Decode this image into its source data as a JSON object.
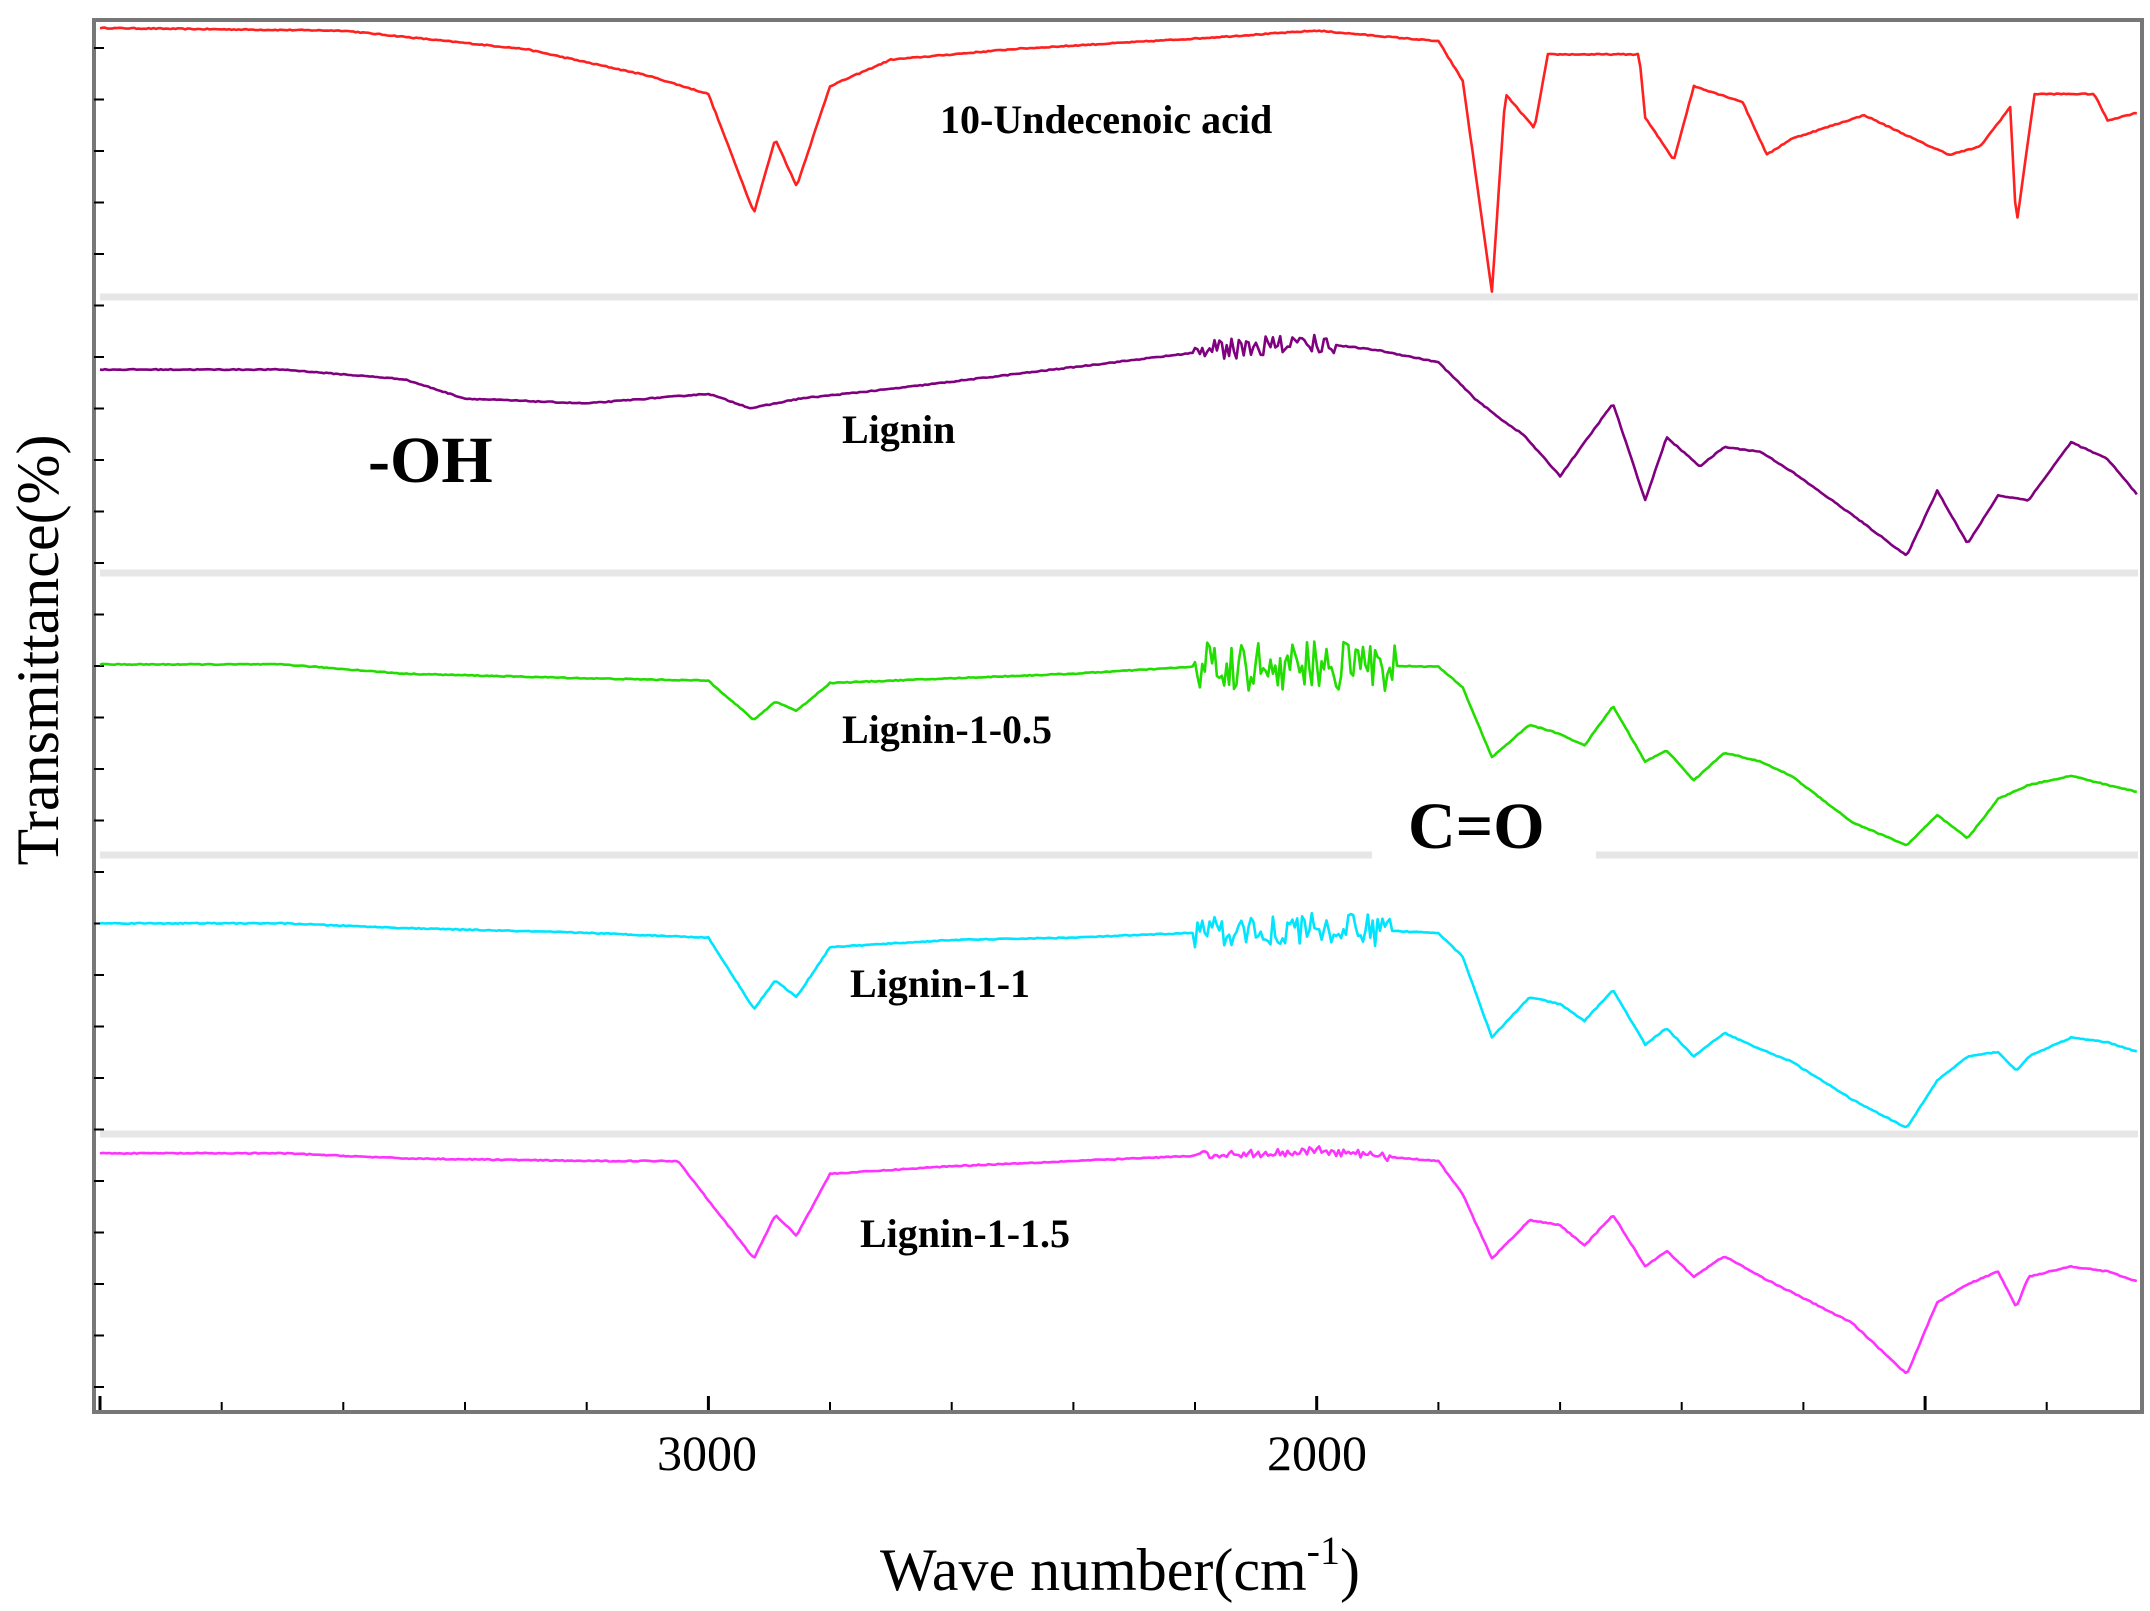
{
  "chart_data": {
    "type": "line",
    "title": "",
    "xlabel": "Wave number(cm",
    "xlabel_superscript": "-1",
    "xlabel_suffix": ")",
    "ylabel": "Transmittance(%)",
    "xlim": [
      4000,
      650
    ],
    "xaxis_reversed": true,
    "x_ticks": [
      3000,
      2000
    ],
    "x_tick_labels": [
      "3000",
      "2000"
    ],
    "grid": false,
    "annotations": [
      {
        "name": "oh-annotation",
        "text": "-OH",
        "x": 3450,
        "series": "Lignin"
      },
      {
        "name": "carbonyl-annotation",
        "text": "C=O",
        "x": 1710,
        "series": "Lignin-1-0.5"
      }
    ],
    "series": [
      {
        "name": "10-Undecenoic acid",
        "color": "#ff2020",
        "points": [
          [
            4000,
            1.0
          ],
          [
            3600,
            0.99
          ],
          [
            3300,
            0.92
          ],
          [
            3100,
            0.82
          ],
          [
            3000,
            0.75
          ],
          [
            2925,
            0.3
          ],
          [
            2890,
            0.58
          ],
          [
            2855,
            0.4
          ],
          [
            2800,
            0.78
          ],
          [
            2700,
            0.88
          ],
          [
            2500,
            0.92
          ],
          [
            2200,
            0.96
          ],
          [
            2000,
            0.99
          ],
          [
            1800,
            0.95
          ],
          [
            1760,
            0.8
          ],
          [
            1712,
            0.0
          ],
          [
            1690,
            0.75
          ],
          [
            1642,
            0.62
          ],
          [
            1620,
            0.9
          ],
          [
            1470,
            0.9
          ],
          [
            1460,
            0.66
          ],
          [
            1413,
            0.5
          ],
          [
            1380,
            0.78
          ],
          [
            1300,
            0.72
          ],
          [
            1260,
            0.52
          ],
          [
            1220,
            0.58
          ],
          [
            1100,
            0.67
          ],
          [
            1000,
            0.56
          ],
          [
            960,
            0.52
          ],
          [
            910,
            0.55
          ],
          [
            860,
            0.7
          ],
          [
            850,
            0.25
          ],
          [
            820,
            0.75
          ],
          [
            722,
            0.75
          ],
          [
            700,
            0.65
          ],
          [
            650,
            0.68
          ]
        ],
        "noise": []
      },
      {
        "name": "Lignin",
        "color": "#800080",
        "points": [
          [
            4000,
            0.82
          ],
          [
            3700,
            0.82
          ],
          [
            3500,
            0.78
          ],
          [
            3400,
            0.7
          ],
          [
            3200,
            0.68
          ],
          [
            3000,
            0.72
          ],
          [
            2930,
            0.66
          ],
          [
            2850,
            0.7
          ],
          [
            2700,
            0.74
          ],
          [
            2500,
            0.8
          ],
          [
            2300,
            0.86
          ],
          [
            2100,
            0.92
          ],
          [
            2000,
            0.93
          ],
          [
            1900,
            0.9
          ],
          [
            1800,
            0.85
          ],
          [
            1740,
            0.7
          ],
          [
            1700,
            0.62
          ],
          [
            1660,
            0.55
          ],
          [
            1600,
            0.38
          ],
          [
            1513,
            0.68
          ],
          [
            1460,
            0.28
          ],
          [
            1425,
            0.54
          ],
          [
            1370,
            0.42
          ],
          [
            1330,
            0.5
          ],
          [
            1270,
            0.48
          ],
          [
            1220,
            0.4
          ],
          [
            1120,
            0.22
          ],
          [
            1030,
            0.05
          ],
          [
            980,
            0.32
          ],
          [
            930,
            0.1
          ],
          [
            880,
            0.3
          ],
          [
            830,
            0.28
          ],
          [
            760,
            0.52
          ],
          [
            700,
            0.45
          ],
          [
            650,
            0.3
          ]
        ],
        "noise": [
          [
            2200,
            1970,
            0.04
          ]
        ]
      },
      {
        "name": "Lignin-1-0.5",
        "color": "#22dd00",
        "points": [
          [
            4000,
            0.8
          ],
          [
            3700,
            0.8
          ],
          [
            3500,
            0.76
          ],
          [
            3200,
            0.74
          ],
          [
            3000,
            0.73
          ],
          [
            2925,
            0.56
          ],
          [
            2890,
            0.64
          ],
          [
            2855,
            0.6
          ],
          [
            2800,
            0.72
          ],
          [
            2600,
            0.74
          ],
          [
            2400,
            0.76
          ],
          [
            2200,
            0.79
          ],
          [
            2000,
            0.8
          ],
          [
            1800,
            0.79
          ],
          [
            1760,
            0.7
          ],
          [
            1712,
            0.4
          ],
          [
            1650,
            0.54
          ],
          [
            1600,
            0.5
          ],
          [
            1560,
            0.45
          ],
          [
            1513,
            0.62
          ],
          [
            1460,
            0.38
          ],
          [
            1425,
            0.43
          ],
          [
            1380,
            0.3
          ],
          [
            1330,
            0.42
          ],
          [
            1270,
            0.38
          ],
          [
            1220,
            0.32
          ],
          [
            1120,
            0.12
          ],
          [
            1030,
            0.02
          ],
          [
            980,
            0.15
          ],
          [
            930,
            0.05
          ],
          [
            880,
            0.22
          ],
          [
            830,
            0.28
          ],
          [
            760,
            0.32
          ],
          [
            700,
            0.28
          ],
          [
            650,
            0.25
          ]
        ],
        "noise": [
          [
            2200,
            1870,
            0.1
          ]
        ]
      },
      {
        "name": "Lignin-1-1",
        "color": "#00e5ff",
        "points": [
          [
            4000,
            0.86
          ],
          [
            3700,
            0.86
          ],
          [
            3500,
            0.84
          ],
          [
            3200,
            0.82
          ],
          [
            3000,
            0.8
          ],
          [
            2925,
            0.5
          ],
          [
            2890,
            0.62
          ],
          [
            2855,
            0.55
          ],
          [
            2800,
            0.76
          ],
          [
            2600,
            0.79
          ],
          [
            2400,
            0.8
          ],
          [
            2200,
            0.82
          ],
          [
            2000,
            0.84
          ],
          [
            1800,
            0.82
          ],
          [
            1760,
            0.72
          ],
          [
            1712,
            0.38
          ],
          [
            1650,
            0.55
          ],
          [
            1600,
            0.52
          ],
          [
            1560,
            0.45
          ],
          [
            1513,
            0.58
          ],
          [
            1460,
            0.35
          ],
          [
            1425,
            0.42
          ],
          [
            1380,
            0.3
          ],
          [
            1330,
            0.4
          ],
          [
            1270,
            0.33
          ],
          [
            1220,
            0.28
          ],
          [
            1120,
            0.12
          ],
          [
            1030,
            0.0
          ],
          [
            980,
            0.2
          ],
          [
            930,
            0.3
          ],
          [
            880,
            0.32
          ],
          [
            850,
            0.24
          ],
          [
            830,
            0.3
          ],
          [
            760,
            0.38
          ],
          [
            700,
            0.36
          ],
          [
            650,
            0.32
          ]
        ],
        "noise": [
          [
            2200,
            1880,
            0.06
          ]
        ]
      },
      {
        "name": "Lignin-1-1.5",
        "color": "#ff33ff",
        "points": [
          [
            4000,
            0.96
          ],
          [
            3700,
            0.96
          ],
          [
            3500,
            0.94
          ],
          [
            3200,
            0.93
          ],
          [
            3050,
            0.93
          ],
          [
            2925,
            0.55
          ],
          [
            2890,
            0.72
          ],
          [
            2855,
            0.64
          ],
          [
            2800,
            0.88
          ],
          [
            2600,
            0.91
          ],
          [
            2400,
            0.93
          ],
          [
            2200,
            0.95
          ],
          [
            2000,
            0.97
          ],
          [
            1800,
            0.93
          ],
          [
            1760,
            0.8
          ],
          [
            1712,
            0.55
          ],
          [
            1650,
            0.7
          ],
          [
            1600,
            0.68
          ],
          [
            1560,
            0.6
          ],
          [
            1513,
            0.72
          ],
          [
            1460,
            0.52
          ],
          [
            1425,
            0.58
          ],
          [
            1380,
            0.48
          ],
          [
            1330,
            0.56
          ],
          [
            1270,
            0.48
          ],
          [
            1220,
            0.42
          ],
          [
            1120,
            0.3
          ],
          [
            1030,
            0.1
          ],
          [
            980,
            0.38
          ],
          [
            930,
            0.45
          ],
          [
            880,
            0.5
          ],
          [
            850,
            0.36
          ],
          [
            830,
            0.48
          ],
          [
            760,
            0.52
          ],
          [
            700,
            0.5
          ],
          [
            650,
            0.46
          ]
        ],
        "noise": [
          [
            2200,
            1880,
            0.015
          ]
        ]
      }
    ]
  }
}
